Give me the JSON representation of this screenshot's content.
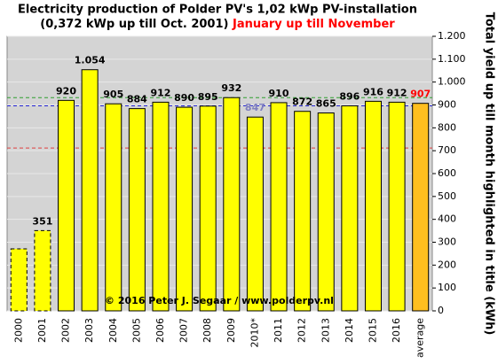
{
  "chart_data": {
    "type": "bar",
    "title": "Electricity production  of Polder PV's 1,02 kWp PV-installation",
    "subtitle": "(0,372 kWp up till Oct. 2001)",
    "subtitle_highlight": "January up till November",
    "y_axis_label": "Total yield up till month highlighted in title (kWh)",
    "annotation": "© 2016 Peter J. Segaar / www.polderpv.nl",
    "categories": [
      "2000",
      "2001",
      "2002",
      "2003",
      "2004",
      "2005",
      "2006",
      "2007",
      "2008",
      "2009",
      "2010*",
      "2011",
      "2012",
      "2013",
      "2014",
      "2015",
      "2016",
      "average"
    ],
    "values": [
      271,
      351,
      920,
      1054,
      905,
      884,
      912,
      890,
      895,
      932,
      847,
      910,
      872,
      865,
      896,
      916,
      912,
      907
    ],
    "value_labels": [
      null,
      "351",
      "920",
      "1.054",
      "905",
      "884",
      "912",
      "890",
      "895",
      "932",
      "847",
      "910",
      "872",
      "865",
      "896",
      "916",
      "912",
      "907"
    ],
    "bar_colors": [
      "#ffff00",
      "#ffff00",
      "#ffff00",
      "#ffff00",
      "#ffff00",
      "#ffff00",
      "#ffff00",
      "#ffff00",
      "#ffff00",
      "#ffff00",
      "#ffff00",
      "#ffff00",
      "#ffff00",
      "#ffff00",
      "#ffff00",
      "#ffff00",
      "#ffff00",
      "#ffbf1f"
    ],
    "bar_styles": [
      "dashed",
      "dashed",
      "solid",
      "solid",
      "solid",
      "solid",
      "solid",
      "solid",
      "solid",
      "solid",
      "solid",
      "solid",
      "solid",
      "solid",
      "solid",
      "solid",
      "solid",
      "solid"
    ],
    "label_colors": [
      "#000",
      "#000",
      "#000",
      "#000",
      "#000",
      "#000",
      "#000",
      "#000",
      "#000",
      "#000",
      "#7f7fbf",
      "#000",
      "#000",
      "#000",
      "#000",
      "#000",
      "#000",
      "#ff0000"
    ],
    "reference_lines": [
      {
        "value": 932,
        "color": "#2e9e2e"
      },
      {
        "value": 896,
        "color": "#2020d0"
      },
      {
        "value": 712,
        "color": "#e04040"
      }
    ],
    "ylim": [
      0,
      1200
    ],
    "yticks": [
      0,
      100,
      200,
      300,
      400,
      500,
      600,
      700,
      800,
      900,
      {
        "value": 1000,
        "label": "1.000"
      },
      {
        "value": 1100,
        "label": "1.100"
      },
      {
        "value": 1200,
        "label": "1.200"
      }
    ],
    "axis_side": "right",
    "grid": true
  }
}
